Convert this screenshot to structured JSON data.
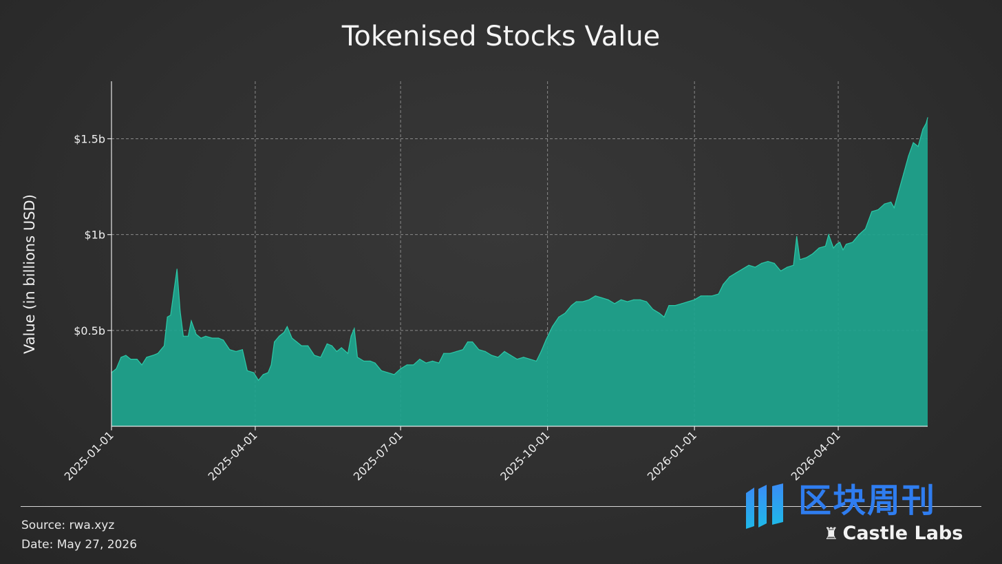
{
  "source_text": "Source: rwa.xyz",
  "date_text": "Date: May 27, 2026",
  "logo": {
    "cn_text": "区块周刊",
    "brand_text": "Castle Labs",
    "brand_icon": "castle-icon",
    "cn_color": "#2f7df0"
  },
  "colors": {
    "background": "#2f2f2f",
    "area_fill": "#1ea58e",
    "area_line": "#2cc9a8",
    "grid": "#8a8a8a"
  },
  "chart_data": {
    "type": "area",
    "title": "Tokenised Stocks Value",
    "xlabel": "",
    "ylabel": "Value (in billions USD)",
    "x_axis": {
      "type": "date",
      "start": "2025-01-01",
      "end": "2026-05-27",
      "ticks": [
        "2025-01-01",
        "2025-04-01",
        "2025-07-01",
        "2025-10-01",
        "2026-01-01",
        "2026-04-01"
      ]
    },
    "y_axis": {
      "unit": "billions USD",
      "range": [
        0,
        1.8
      ],
      "ticks": [
        0.5,
        1.0,
        1.5
      ],
      "tick_labels": [
        "$0.5b",
        "$1b",
        "$1.5b"
      ]
    },
    "grid": "dashed, on",
    "legend": "none",
    "series": [
      {
        "points": [
          [
            "2025-01-01",
            0.28
          ],
          [
            "2025-01-04",
            0.3
          ],
          [
            "2025-01-07",
            0.36
          ],
          [
            "2025-01-10",
            0.37
          ],
          [
            "2025-01-13",
            0.35
          ],
          [
            "2025-01-17",
            0.35
          ],
          [
            "2025-01-20",
            0.32
          ],
          [
            "2025-01-23",
            0.36
          ],
          [
            "2025-01-27",
            0.37
          ],
          [
            "2025-01-30",
            0.38
          ],
          [
            "2025-02-03",
            0.42
          ],
          [
            "2025-02-05",
            0.57
          ],
          [
            "2025-02-07",
            0.58
          ],
          [
            "2025-02-09",
            0.7
          ],
          [
            "2025-02-11",
            0.82
          ],
          [
            "2025-02-13",
            0.6
          ],
          [
            "2025-02-15",
            0.47
          ],
          [
            "2025-02-18",
            0.47
          ],
          [
            "2025-02-20",
            0.55
          ],
          [
            "2025-02-23",
            0.48
          ],
          [
            "2025-02-26",
            0.46
          ],
          [
            "2025-03-01",
            0.47
          ],
          [
            "2025-03-05",
            0.46
          ],
          [
            "2025-03-09",
            0.46
          ],
          [
            "2025-03-12",
            0.45
          ],
          [
            "2025-03-16",
            0.4
          ],
          [
            "2025-03-20",
            0.39
          ],
          [
            "2025-03-24",
            0.4
          ],
          [
            "2025-03-27",
            0.29
          ],
          [
            "2025-03-31",
            0.28
          ],
          [
            "2025-04-03",
            0.24
          ],
          [
            "2025-04-06",
            0.27
          ],
          [
            "2025-04-09",
            0.28
          ],
          [
            "2025-04-11",
            0.32
          ],
          [
            "2025-04-13",
            0.44
          ],
          [
            "2025-04-16",
            0.47
          ],
          [
            "2025-04-19",
            0.49
          ],
          [
            "2025-04-21",
            0.52
          ],
          [
            "2025-04-24",
            0.46
          ],
          [
            "2025-04-27",
            0.44
          ],
          [
            "2025-04-30",
            0.42
          ],
          [
            "2025-05-04",
            0.42
          ],
          [
            "2025-05-08",
            0.37
          ],
          [
            "2025-05-12",
            0.36
          ],
          [
            "2025-05-16",
            0.43
          ],
          [
            "2025-05-19",
            0.42
          ],
          [
            "2025-05-22",
            0.39
          ],
          [
            "2025-05-25",
            0.41
          ],
          [
            "2025-05-29",
            0.38
          ],
          [
            "2025-05-31",
            0.47
          ],
          [
            "2025-06-02",
            0.51
          ],
          [
            "2025-06-04",
            0.36
          ],
          [
            "2025-06-08",
            0.34
          ],
          [
            "2025-06-12",
            0.34
          ],
          [
            "2025-06-15",
            0.33
          ],
          [
            "2025-06-19",
            0.29
          ],
          [
            "2025-06-23",
            0.28
          ],
          [
            "2025-06-27",
            0.27
          ],
          [
            "2025-07-01",
            0.3
          ],
          [
            "2025-07-05",
            0.32
          ],
          [
            "2025-07-09",
            0.32
          ],
          [
            "2025-07-13",
            0.35
          ],
          [
            "2025-07-17",
            0.33
          ],
          [
            "2025-07-21",
            0.34
          ],
          [
            "2025-07-25",
            0.33
          ],
          [
            "2025-07-28",
            0.38
          ],
          [
            "2025-08-01",
            0.38
          ],
          [
            "2025-08-05",
            0.39
          ],
          [
            "2025-08-09",
            0.4
          ],
          [
            "2025-08-12",
            0.44
          ],
          [
            "2025-08-15",
            0.44
          ],
          [
            "2025-08-19",
            0.4
          ],
          [
            "2025-08-23",
            0.39
          ],
          [
            "2025-08-27",
            0.37
          ],
          [
            "2025-08-31",
            0.36
          ],
          [
            "2025-09-04",
            0.39
          ],
          [
            "2025-09-08",
            0.37
          ],
          [
            "2025-09-12",
            0.35
          ],
          [
            "2025-09-16",
            0.36
          ],
          [
            "2025-09-20",
            0.35
          ],
          [
            "2025-09-24",
            0.34
          ],
          [
            "2025-09-27",
            0.39
          ],
          [
            "2025-09-30",
            0.45
          ],
          [
            "2025-10-04",
            0.52
          ],
          [
            "2025-10-08",
            0.57
          ],
          [
            "2025-10-12",
            0.59
          ],
          [
            "2025-10-16",
            0.63
          ],
          [
            "2025-10-19",
            0.65
          ],
          [
            "2025-10-23",
            0.65
          ],
          [
            "2025-10-27",
            0.66
          ],
          [
            "2025-10-31",
            0.68
          ],
          [
            "2025-11-04",
            0.67
          ],
          [
            "2025-11-08",
            0.66
          ],
          [
            "2025-11-12",
            0.64
          ],
          [
            "2025-11-16",
            0.66
          ],
          [
            "2025-11-20",
            0.65
          ],
          [
            "2025-11-24",
            0.66
          ],
          [
            "2025-11-28",
            0.66
          ],
          [
            "2025-12-02",
            0.65
          ],
          [
            "2025-12-06",
            0.61
          ],
          [
            "2025-12-10",
            0.59
          ],
          [
            "2025-12-13",
            0.57
          ],
          [
            "2025-12-16",
            0.63
          ],
          [
            "2025-12-20",
            0.63
          ],
          [
            "2025-12-24",
            0.64
          ],
          [
            "2025-12-28",
            0.65
          ],
          [
            "2026-01-01",
            0.66
          ],
          [
            "2026-01-05",
            0.68
          ],
          [
            "2026-01-09",
            0.68
          ],
          [
            "2026-01-12",
            0.68
          ],
          [
            "2026-01-16",
            0.69
          ],
          [
            "2026-01-19",
            0.74
          ],
          [
            "2026-01-23",
            0.78
          ],
          [
            "2026-01-27",
            0.8
          ],
          [
            "2026-01-31",
            0.82
          ],
          [
            "2026-02-04",
            0.84
          ],
          [
            "2026-02-08",
            0.83
          ],
          [
            "2026-02-12",
            0.85
          ],
          [
            "2026-02-16",
            0.86
          ],
          [
            "2026-02-20",
            0.85
          ],
          [
            "2026-02-24",
            0.81
          ],
          [
            "2026-02-28",
            0.83
          ],
          [
            "2026-03-04",
            0.84
          ],
          [
            "2026-03-06",
            0.99
          ],
          [
            "2026-03-08",
            0.87
          ],
          [
            "2026-03-12",
            0.88
          ],
          [
            "2026-03-16",
            0.9
          ],
          [
            "2026-03-20",
            0.93
          ],
          [
            "2026-03-24",
            0.94
          ],
          [
            "2026-03-26",
            1.0
          ],
          [
            "2026-03-29",
            0.93
          ],
          [
            "2026-03-31",
            0.95
          ],
          [
            "2026-04-02",
            0.96
          ],
          [
            "2026-04-04",
            0.92
          ],
          [
            "2026-04-06",
            0.95
          ],
          [
            "2026-04-10",
            0.96
          ],
          [
            "2026-04-14",
            1.0
          ],
          [
            "2026-04-18",
            1.03
          ],
          [
            "2026-04-22",
            1.12
          ],
          [
            "2026-04-26",
            1.13
          ],
          [
            "2026-04-30",
            1.16
          ],
          [
            "2026-05-04",
            1.17
          ],
          [
            "2026-05-06",
            1.14
          ],
          [
            "2026-05-09",
            1.23
          ],
          [
            "2026-05-12",
            1.32
          ],
          [
            "2026-05-15",
            1.41
          ],
          [
            "2026-05-18",
            1.48
          ],
          [
            "2026-05-21",
            1.46
          ],
          [
            "2026-05-24",
            1.55
          ],
          [
            "2026-05-26",
            1.58
          ],
          [
            "2026-05-27",
            1.61
          ]
        ]
      }
    ]
  }
}
